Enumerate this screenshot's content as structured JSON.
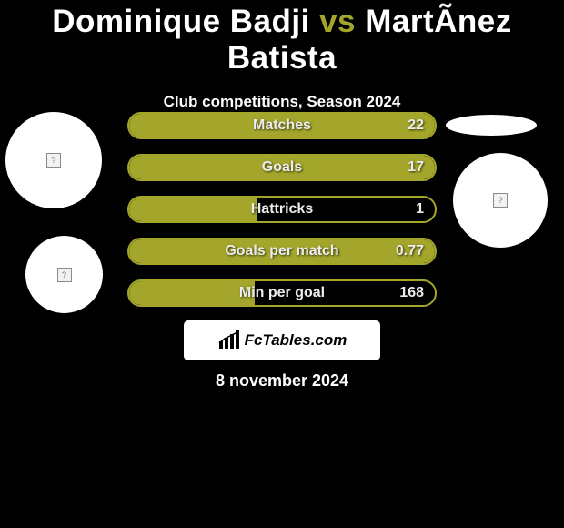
{
  "header": {
    "player1": "Dominique Badji",
    "vs": "vs",
    "player2": "MartÃ­nez Batista",
    "subtitle": "Club competitions, Season 2024"
  },
  "colors": {
    "background": "#000000",
    "accent": "#a3a62a",
    "bar_fill": "#a3a62a",
    "bar_border": "#a3a62a",
    "text": "#ffffff"
  },
  "stats": [
    {
      "label": "Matches",
      "value": "22",
      "fill_percent": 100
    },
    {
      "label": "Goals",
      "value": "17",
      "fill_percent": 100
    },
    {
      "label": "Hattricks",
      "value": "1",
      "fill_percent": 42
    },
    {
      "label": "Goals per match",
      "value": "0.77",
      "fill_percent": 100
    },
    {
      "label": "Min per goal",
      "value": "168",
      "fill_percent": 41
    }
  ],
  "branding": {
    "text": "FcTables.com"
  },
  "footer": {
    "date": "8 november 2024"
  },
  "icons": {
    "broken_image_glyph": "?"
  }
}
